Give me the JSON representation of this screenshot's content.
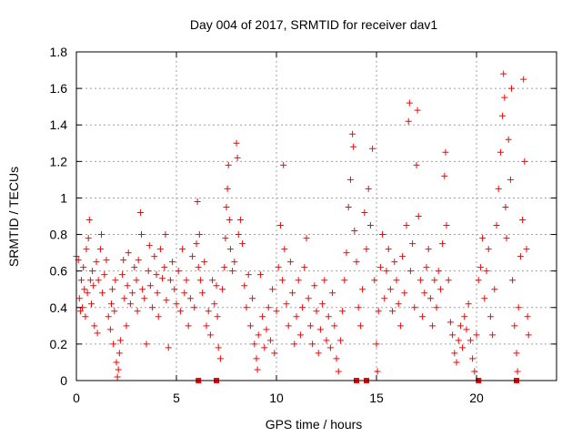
{
  "chart_data": {
    "type": "scatter",
    "title": "Day 004 of 2017, SRMTID for receiver dav1",
    "xlabel": "GPS time / hours",
    "ylabel": "SRMTID / TECUs",
    "xlim": [
      0,
      24
    ],
    "ylim": [
      0,
      1.8
    ],
    "xticks": [
      0,
      5,
      10,
      15,
      20
    ],
    "xtick_labels": [
      "0",
      "5",
      "10",
      "15",
      "20"
    ],
    "yticks": [
      0,
      0.2,
      0.4,
      0.6,
      0.8,
      1,
      1.2,
      1.4,
      1.6,
      1.8
    ],
    "ytick_labels": [
      "0",
      "0.2",
      "0.4",
      "0.6",
      "0.8",
      "1",
      "1.2",
      "1.4",
      "1.6",
      "1.8"
    ],
    "grid": true,
    "marker": "plus",
    "color": "#ff0000",
    "series": [
      {
        "name": "SRMTID",
        "points": [
          [
            0.0,
            0.68
          ],
          [
            0.1,
            0.66
          ],
          [
            0.15,
            0.45
          ],
          [
            0.2,
            0.38
          ],
          [
            0.25,
            0.55
          ],
          [
            0.3,
            0.4
          ],
          [
            0.35,
            0.62
          ],
          [
            0.4,
            0.5
          ],
          [
            0.45,
            0.35
          ],
          [
            0.5,
            0.72
          ],
          [
            0.55,
            0.48
          ],
          [
            0.6,
            0.78
          ],
          [
            0.65,
            0.88
          ],
          [
            0.7,
            0.55
          ],
          [
            0.75,
            0.42
          ],
          [
            0.8,
            0.6
          ],
          [
            0.85,
            0.52
          ],
          [
            0.9,
            0.3
          ],
          [
            1.0,
            0.65
          ],
          [
            1.05,
            0.26
          ],
          [
            1.1,
            0.55
          ],
          [
            1.2,
            0.72
          ],
          [
            1.25,
            0.8
          ],
          [
            1.3,
            0.48
          ],
          [
            1.4,
            0.58
          ],
          [
            1.5,
            0.66
          ],
          [
            1.6,
            0.35
          ],
          [
            1.7,
            0.28
          ],
          [
            1.75,
            0.42
          ],
          [
            1.8,
            0.5
          ],
          [
            1.85,
            0.2
          ],
          [
            1.9,
            0.38
          ],
          [
            1.95,
            0.55
          ],
          [
            2.0,
            0.1
          ],
          [
            2.05,
            0.02
          ],
          [
            2.1,
            0.06
          ],
          [
            2.15,
            0.15
          ],
          [
            2.2,
            0.22
          ],
          [
            2.3,
            0.58
          ],
          [
            2.35,
            0.66
          ],
          [
            2.4,
            0.45
          ],
          [
            2.5,
            0.3
          ],
          [
            2.55,
            0.52
          ],
          [
            2.6,
            0.7
          ],
          [
            2.7,
            0.42
          ],
          [
            2.8,
            0.48
          ],
          [
            2.9,
            0.62
          ],
          [
            3.0,
            0.55
          ],
          [
            3.05,
            0.38
          ],
          [
            3.1,
            0.66
          ],
          [
            3.2,
            0.92
          ],
          [
            3.25,
            0.8
          ],
          [
            3.3,
            0.5
          ],
          [
            3.4,
            0.45
          ],
          [
            3.5,
            0.2
          ],
          [
            3.6,
            0.6
          ],
          [
            3.65,
            0.74
          ],
          [
            3.7,
            0.52
          ],
          [
            3.8,
            0.4
          ],
          [
            3.9,
            0.68
          ],
          [
            4.0,
            0.58
          ],
          [
            4.05,
            0.48
          ],
          [
            4.1,
            0.35
          ],
          [
            4.2,
            0.72
          ],
          [
            4.3,
            0.56
          ],
          [
            4.4,
            0.62
          ],
          [
            4.45,
            0.8
          ],
          [
            4.5,
            0.44
          ],
          [
            4.6,
            0.18
          ],
          [
            4.7,
            0.55
          ],
          [
            4.8,
            0.65
          ],
          [
            4.9,
            0.5
          ],
          [
            5.0,
            0.42
          ],
          [
            5.1,
            0.6
          ],
          [
            5.2,
            0.38
          ],
          [
            5.3,
            0.72
          ],
          [
            5.4,
            0.48
          ],
          [
            5.5,
            0.55
          ],
          [
            5.6,
            0.3
          ],
          [
            5.7,
            0.45
          ],
          [
            5.8,
            0.68
          ],
          [
            5.9,
            0.4
          ],
          [
            6.0,
            0.75
          ],
          [
            6.05,
            0.98
          ],
          [
            6.1,
            0.62
          ],
          [
            6.15,
            0.8
          ],
          [
            6.2,
            0.55
          ],
          [
            6.3,
            0.48
          ],
          [
            6.4,
            0.65
          ],
          [
            6.5,
            0.3
          ],
          [
            6.6,
            0.38
          ],
          [
            6.7,
            0.25
          ],
          [
            6.8,
            0.55
          ],
          [
            6.9,
            0.42
          ],
          [
            7.0,
            0.52
          ],
          [
            7.05,
            0.35
          ],
          [
            7.1,
            0.18
          ],
          [
            7.2,
            0.12
          ],
          [
            7.3,
            0.5
          ],
          [
            7.4,
            0.62
          ],
          [
            7.45,
            0.78
          ],
          [
            7.5,
            0.95
          ],
          [
            7.55,
            1.05
          ],
          [
            7.6,
            1.18
          ],
          [
            7.65,
            0.88
          ],
          [
            7.7,
            0.72
          ],
          [
            7.8,
            0.6
          ],
          [
            7.9,
            0.65
          ],
          [
            8.0,
            1.3
          ],
          [
            8.05,
            1.22
          ],
          [
            8.1,
            0.8
          ],
          [
            8.2,
            0.88
          ],
          [
            8.3,
            0.75
          ],
          [
            8.4,
            0.52
          ],
          [
            8.5,
            0.4
          ],
          [
            8.6,
            0.58
          ],
          [
            8.7,
            0.3
          ],
          [
            8.8,
            0.45
          ],
          [
            8.9,
            0.2
          ],
          [
            9.0,
            0.12
          ],
          [
            9.05,
            0.06
          ],
          [
            9.1,
            0.25
          ],
          [
            9.2,
            0.58
          ],
          [
            9.3,
            0.35
          ],
          [
            9.4,
            0.18
          ],
          [
            9.5,
            0.28
          ],
          [
            9.6,
            0.4
          ],
          [
            9.7,
            0.22
          ],
          [
            9.8,
            0.5
          ],
          [
            9.9,
            0.15
          ],
          [
            10.0,
            0.38
          ],
          [
            10.1,
            0.62
          ],
          [
            10.2,
            0.85
          ],
          [
            10.3,
            0.55
          ],
          [
            10.35,
            1.18
          ],
          [
            10.4,
            0.72
          ],
          [
            10.5,
            0.42
          ],
          [
            10.6,
            0.3
          ],
          [
            10.7,
            0.65
          ],
          [
            10.8,
            0.48
          ],
          [
            10.9,
            0.2
          ],
          [
            11.0,
            0.35
          ],
          [
            11.1,
            0.55
          ],
          [
            11.2,
            0.25
          ],
          [
            11.3,
            0.4
          ],
          [
            11.4,
            0.62
          ],
          [
            11.5,
            0.78
          ],
          [
            11.6,
            0.45
          ],
          [
            11.7,
            0.3
          ],
          [
            11.8,
            0.2
          ],
          [
            11.9,
            0.52
          ],
          [
            12.0,
            0.38
          ],
          [
            12.1,
            0.15
          ],
          [
            12.2,
            0.28
          ],
          [
            12.3,
            0.42
          ],
          [
            12.4,
            0.55
          ],
          [
            12.5,
            0.22
          ],
          [
            12.6,
            0.35
          ],
          [
            12.7,
            0.18
          ],
          [
            12.8,
            0.48
          ],
          [
            12.9,
            0.3
          ],
          [
            13.0,
            0.12
          ],
          [
            13.1,
            0.05
          ],
          [
            13.2,
            0.22
          ],
          [
            13.3,
            0.38
          ],
          [
            13.4,
            0.55
          ],
          [
            13.5,
            0.7
          ],
          [
            13.6,
            0.95
          ],
          [
            13.7,
            1.1
          ],
          [
            13.8,
            1.35
          ],
          [
            13.85,
            1.28
          ],
          [
            13.9,
            0.82
          ],
          [
            14.0,
            0.65
          ],
          [
            14.1,
            0.4
          ],
          [
            14.2,
            0.3
          ],
          [
            14.3,
            0.5
          ],
          [
            14.4,
            0.92
          ],
          [
            14.5,
            0.72
          ],
          [
            14.6,
            1.05
          ],
          [
            14.7,
            0.85
          ],
          [
            14.8,
            1.27
          ],
          [
            14.9,
            0.55
          ],
          [
            15.0,
            0.2
          ],
          [
            15.05,
            0.05
          ],
          [
            15.1,
            0.38
          ],
          [
            15.2,
            0.62
          ],
          [
            15.3,
            0.8
          ],
          [
            15.4,
            0.45
          ],
          [
            15.5,
            0.6
          ],
          [
            15.6,
            0.72
          ],
          [
            15.7,
            0.5
          ],
          [
            15.8,
            0.38
          ],
          [
            15.9,
            0.65
          ],
          [
            16.0,
            0.55
          ],
          [
            16.1,
            0.42
          ],
          [
            16.2,
            0.3
          ],
          [
            16.3,
            0.68
          ],
          [
            16.4,
            0.48
          ],
          [
            16.5,
            0.85
          ],
          [
            16.6,
            1.42
          ],
          [
            16.65,
            1.52
          ],
          [
            16.7,
            0.6
          ],
          [
            16.8,
            0.75
          ],
          [
            16.9,
            0.4
          ],
          [
            17.0,
            1.18
          ],
          [
            17.05,
            1.48
          ],
          [
            17.1,
            0.9
          ],
          [
            17.2,
            0.55
          ],
          [
            17.3,
            0.35
          ],
          [
            17.4,
            0.48
          ],
          [
            17.5,
            0.62
          ],
          [
            17.6,
            0.72
          ],
          [
            17.7,
            0.45
          ],
          [
            17.8,
            0.3
          ],
          [
            17.9,
            0.55
          ],
          [
            18.0,
            0.4
          ],
          [
            18.1,
            0.6
          ],
          [
            18.2,
            0.5
          ],
          [
            18.3,
            0.75
          ],
          [
            18.4,
            1.12
          ],
          [
            18.45,
            1.25
          ],
          [
            18.5,
            0.85
          ],
          [
            18.6,
            0.55
          ],
          [
            18.7,
            0.32
          ],
          [
            18.8,
            0.25
          ],
          [
            18.9,
            0.15
          ],
          [
            19.0,
            0.1
          ],
          [
            19.1,
            0.22
          ],
          [
            19.2,
            0.3
          ],
          [
            19.3,
            0.18
          ],
          [
            19.4,
            0.35
          ],
          [
            19.5,
            0.28
          ],
          [
            19.6,
            0.42
          ],
          [
            19.7,
            0.22
          ],
          [
            19.8,
            0.12
          ],
          [
            19.9,
            0.05
          ],
          [
            20.0,
            0.25
          ],
          [
            20.1,
            0.55
          ],
          [
            20.2,
            0.62
          ],
          [
            20.3,
            0.78
          ],
          [
            20.4,
            0.45
          ],
          [
            20.5,
            0.6
          ],
          [
            20.6,
            0.72
          ],
          [
            20.7,
            0.35
          ],
          [
            20.8,
            0.25
          ],
          [
            20.9,
            0.5
          ],
          [
            21.0,
            0.85
          ],
          [
            21.1,
            1.05
          ],
          [
            21.2,
            1.25
          ],
          [
            21.3,
            1.45
          ],
          [
            21.35,
            1.68
          ],
          [
            21.4,
            1.55
          ],
          [
            21.45,
            0.95
          ],
          [
            21.5,
            0.78
          ],
          [
            21.6,
            1.32
          ],
          [
            21.7,
            1.1
          ],
          [
            21.75,
            1.6
          ],
          [
            21.8,
            0.55
          ],
          [
            21.9,
            0.3
          ],
          [
            22.0,
            0.15
          ],
          [
            22.05,
            0.05
          ],
          [
            22.1,
            0.4
          ],
          [
            22.2,
            0.68
          ],
          [
            22.3,
            0.88
          ],
          [
            22.35,
            1.65
          ],
          [
            22.4,
            1.2
          ],
          [
            22.5,
            0.72
          ],
          [
            22.55,
            0.35
          ],
          [
            22.6,
            0.25
          ]
        ],
        "baseline_points": [
          [
            6.1,
            0
          ],
          [
            7.0,
            0
          ],
          [
            14.0,
            0
          ],
          [
            14.5,
            0
          ],
          [
            20.1,
            0
          ],
          [
            22.0,
            0
          ]
        ]
      }
    ]
  }
}
